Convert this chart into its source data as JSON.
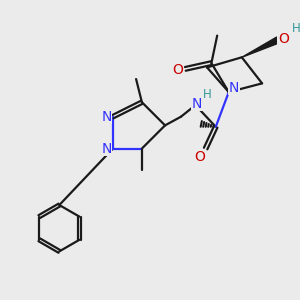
{
  "bg_color": "#ebebeb",
  "bond_color": "#1a1a1a",
  "N_color": "#3333ff",
  "O_color": "#cc0000",
  "H_color": "#339999",
  "figsize": [
    3.0,
    3.0
  ],
  "dpi": 100,
  "xlim": [
    0,
    10
  ],
  "ylim": [
    0,
    10
  ],
  "bond_lw": 1.6,
  "font_size": 10
}
